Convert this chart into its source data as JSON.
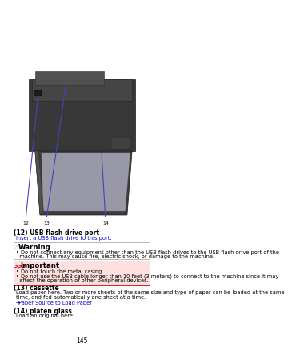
{
  "page_bg": "#ffffff",
  "title12": "(12) USB flash drive port",
  "desc12": "Insert a USB flash drive to this port.",
  "desc12_link_color": "#0000cc",
  "warning_icon_color": "#cc8800",
  "warning_border_color": "#aaaaaa",
  "warning_bullet1": "• Do not connect any equipment other than the USB flash drives to the USB flash drive port of the",
  "warning_bullet2": "  machine. This may cause fire, electric shock, or damage to the machine.",
  "important_title": "Important",
  "important_icon_color": "#cc0000",
  "important_bg": "#ffe0e0",
  "important_bullet1": "• Do not touch the metal casing.",
  "important_bullet2a": "• Do not use the USB cable longer than 10 feet (3 meters) to connect to the machine since it may",
  "important_bullet2b": "  affect the operation of other peripheral devices.",
  "title13": "(13) cassette",
  "desc13a": "Load paper here. Two or more sheets of the same size and type of paper can be loaded at the same",
  "desc13b": "time, and fed automatically one sheet at a time.",
  "desc13_link": "Paper Source to Load Paper",
  "desc13_link_color": "#0000cc",
  "title14": "(14) platen glass",
  "desc14": "Load an original here.",
  "page_number": "145",
  "label12": "12",
  "label13": "13",
  "label14": "14",
  "label_color": "#000000",
  "line_color": "#4444bb",
  "section_title_fontsize": 5.5,
  "body_fontsize": 4.8,
  "warn_header_fontsize": 6.2,
  "imp_header_fontsize": 6.2
}
